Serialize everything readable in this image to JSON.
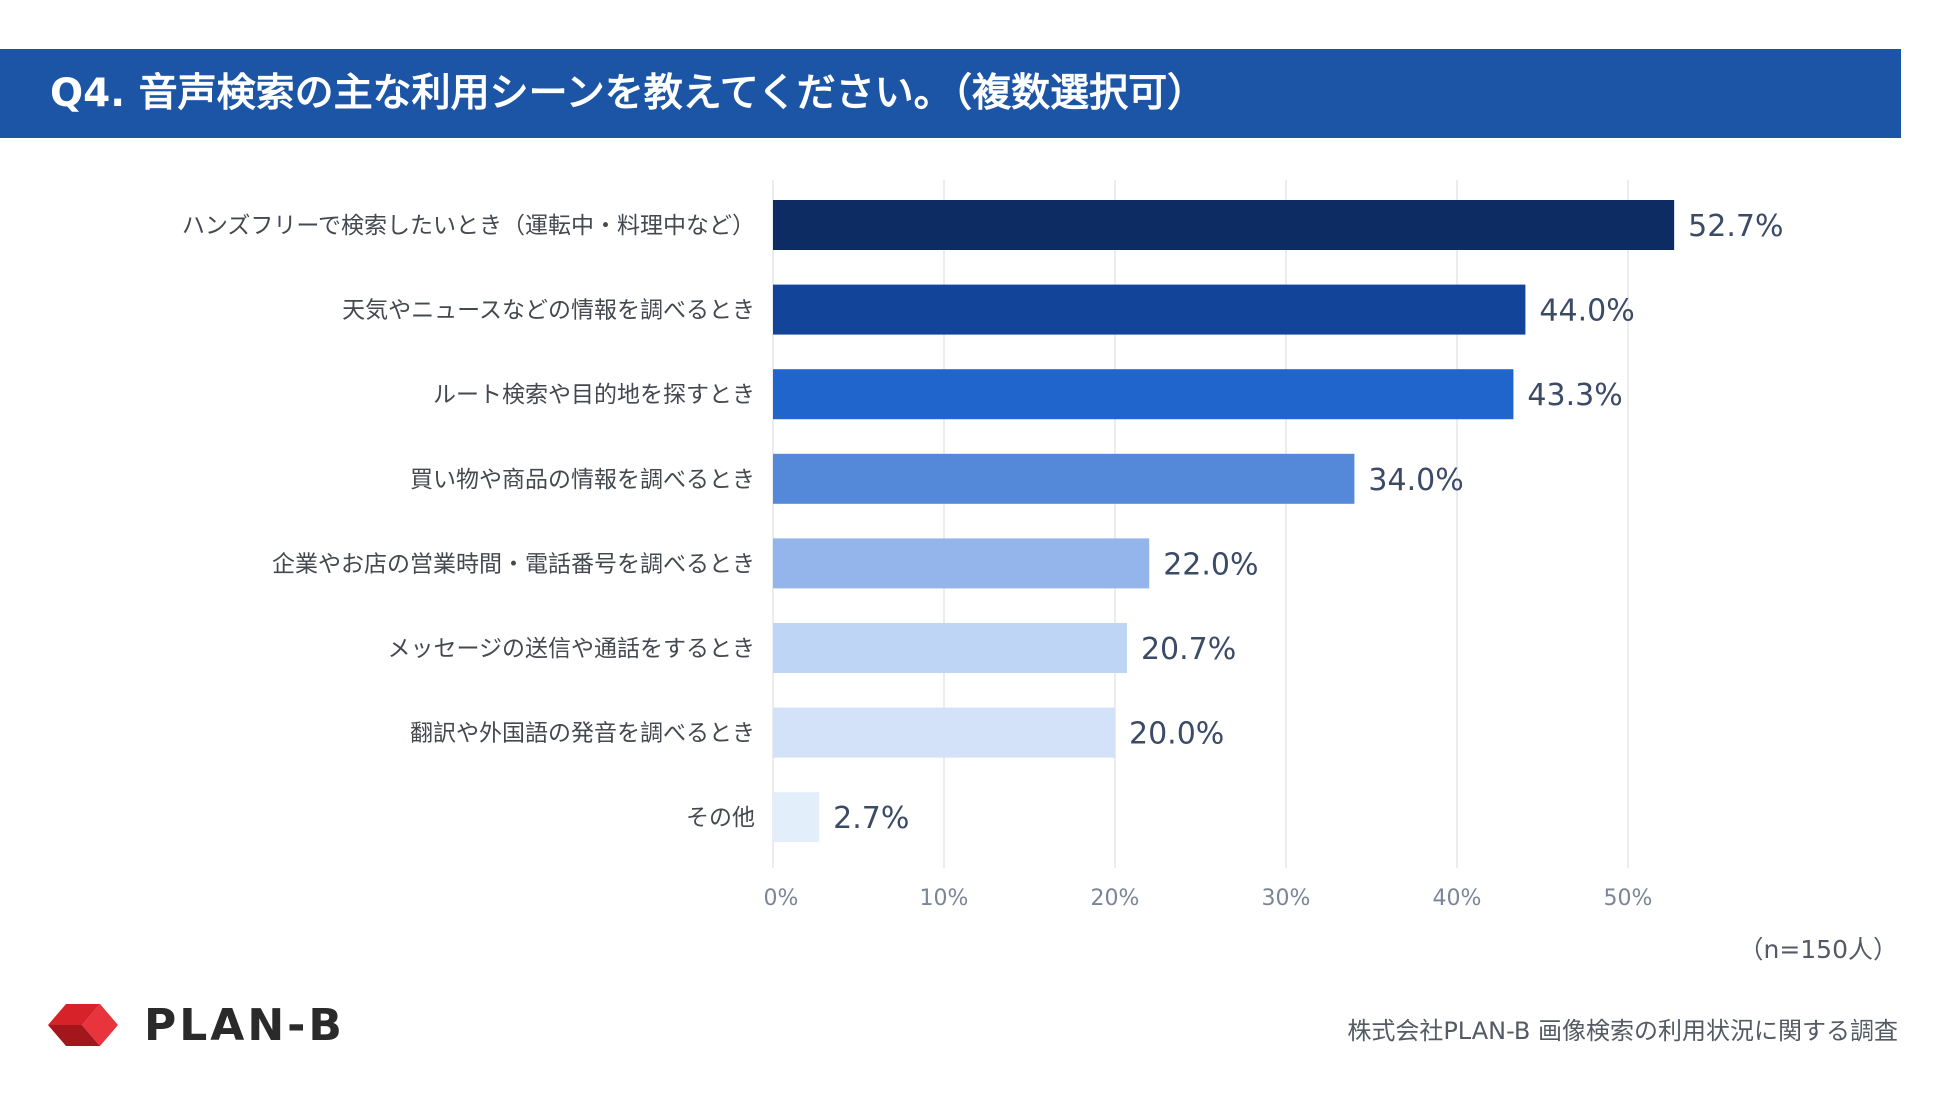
{
  "header": {
    "title": "Q4. 音声検索の主な利用シーンを教えてください。（複数選択可）"
  },
  "chart_data": {
    "type": "bar",
    "orientation": "horizontal",
    "categories": [
      "ハンズフリーで検索したいとき（運転中・料理中など）",
      "天気やニュースなどの情報を調べるとき",
      "ルート検索や目的地を探すとき",
      "買い物や商品の情報を調べるとき",
      "企業やお店の営業時間・電話番号を調べるとき",
      "メッセージの送信や通話をするとき",
      "翻訳や外国語の発音を調べるとき",
      "その他"
    ],
    "values": [
      52.7,
      44.0,
      43.3,
      34.0,
      22.0,
      20.7,
      20.0,
      2.7
    ],
    "value_labels": [
      "52.7%",
      "44.0%",
      "43.3%",
      "34.0%",
      "22.0%",
      "20.7%",
      "20.0%",
      "2.7%"
    ],
    "bar_colors": [
      "#0c2c63",
      "#12459a",
      "#1f65cc",
      "#5489da",
      "#93b5ec",
      "#bfd5f5",
      "#d3e2f8",
      "#e3eefb"
    ],
    "xlim": [
      0,
      60
    ],
    "xticks": [
      0,
      10,
      20,
      30,
      40,
      50
    ],
    "xtick_labels": [
      "0%",
      "10%",
      "20%",
      "30%",
      "40%",
      "50%"
    ],
    "grid": true,
    "title": "",
    "xlabel": "",
    "ylabel": ""
  },
  "note": {
    "sample": "（n=150人）"
  },
  "footer": {
    "logo_text": "PLAN-B",
    "source": "株式会社PLAN-B 画像検索の利用状況に関する調査"
  },
  "colors": {
    "header_bg": "#1c55a6",
    "logo_red": "#d8222a",
    "logo_dark_red": "#a3161c"
  }
}
